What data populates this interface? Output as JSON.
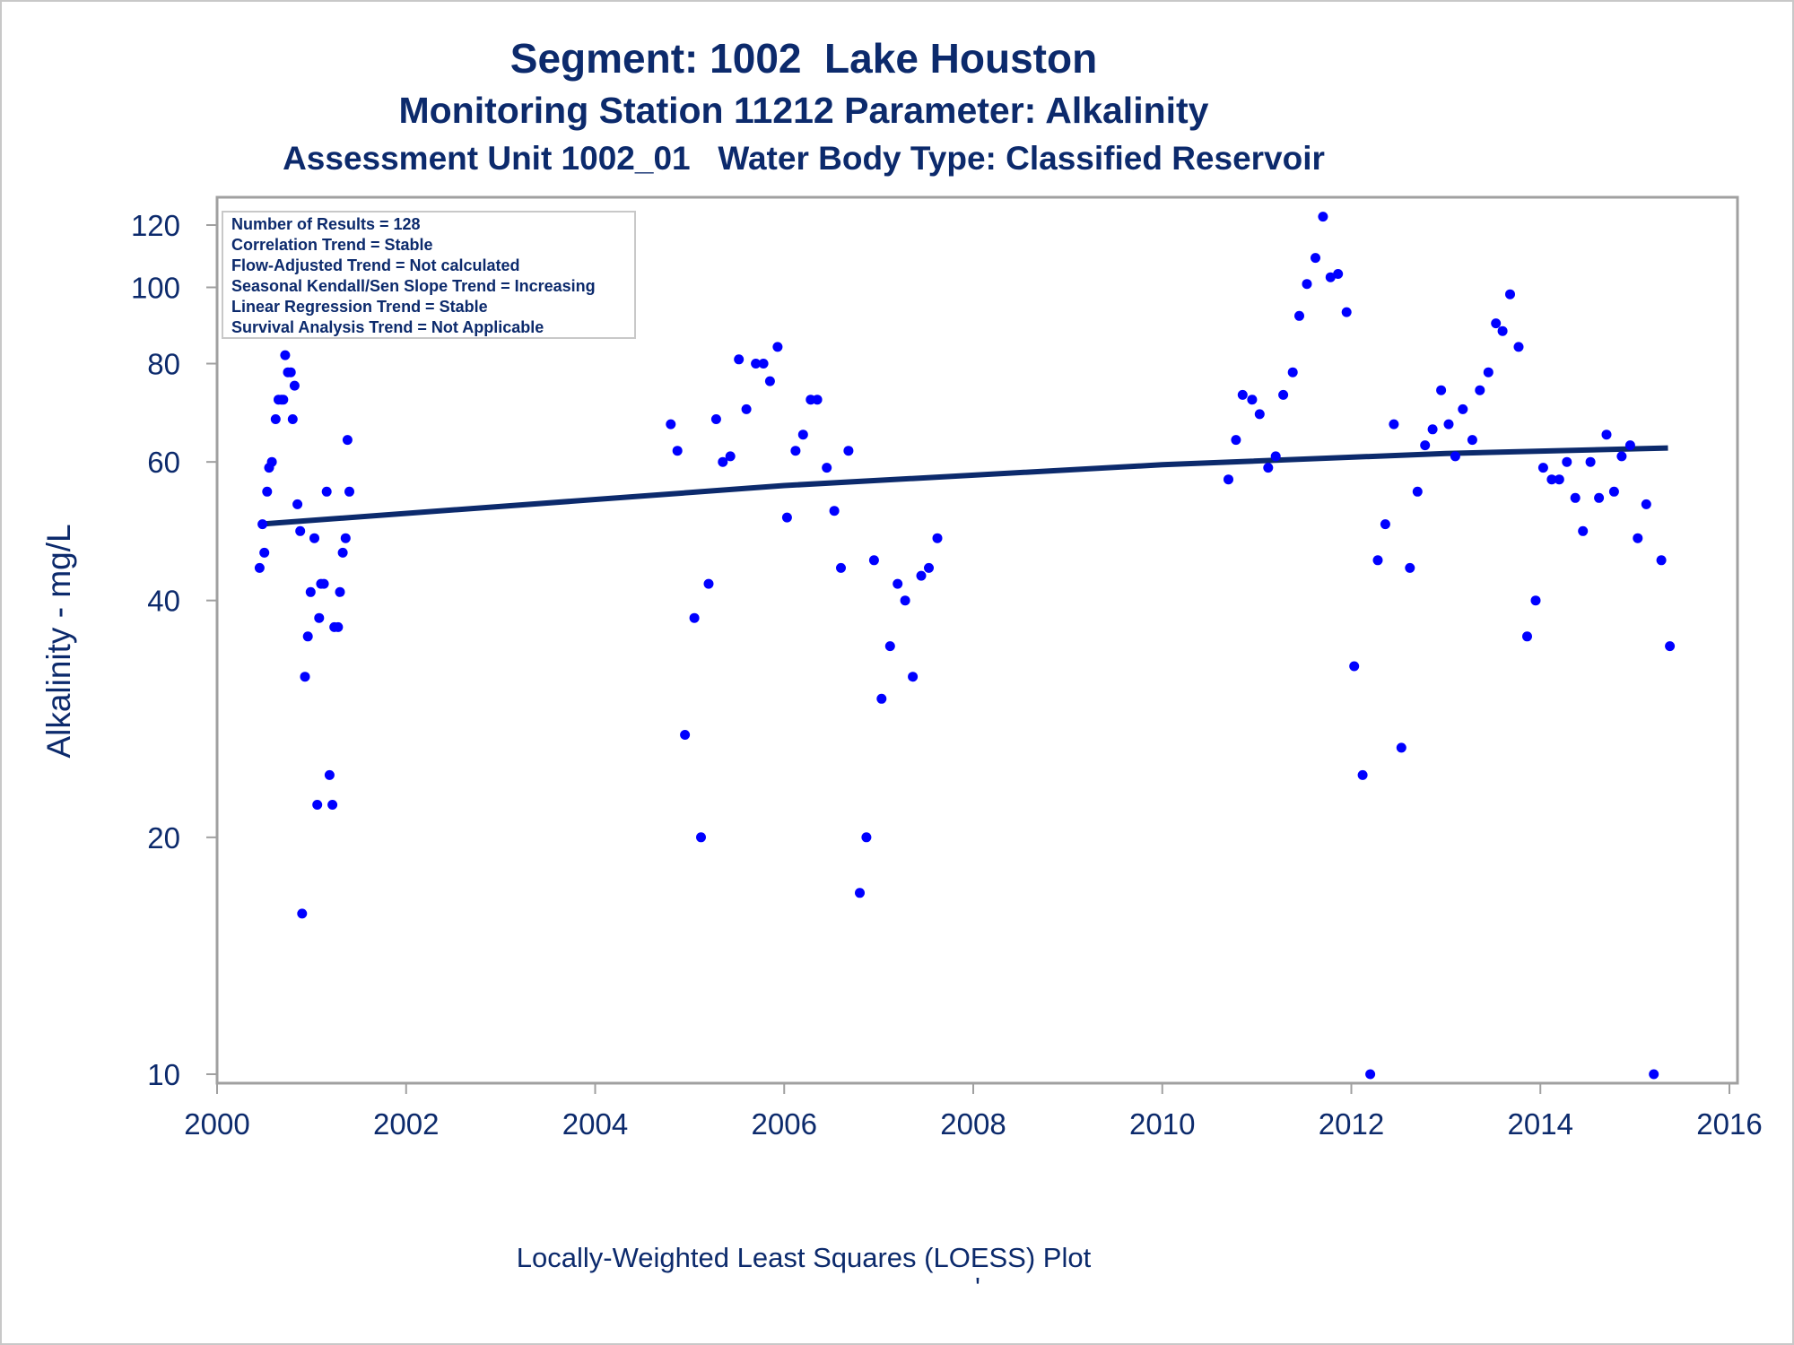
{
  "titles": {
    "line1": "Segment: 1002  Lake Houston",
    "line2": "Monitoring Station 11212 Parameter: Alkalinity",
    "line3": "Assessment Unit 1002_01   Water Body Type: Classified Reservoir"
  },
  "stats": [
    "Number of Results = 128",
    "Correlation Trend = Stable",
    "Flow-Adjusted Trend = Not calculated",
    "Seasonal Kendall/Sen Slope Trend = Increasing",
    "Linear Regression Trend = Stable",
    "Survival Analysis Trend = Not Applicable"
  ],
  "footer": "Locally-Weighted Least Squares (LOESS) Plot",
  "footer_mark": "'",
  "colors": {
    "points": "#0000ff",
    "trend_line": "#0c2a6c",
    "text": "#0c2a6c",
    "axis": "#a0a0a0"
  },
  "chart_data": {
    "type": "scatter",
    "xlabel": "",
    "ylabel": "Alkalinity - mg/L",
    "xlim": [
      2000,
      2016
    ],
    "ylim": [
      10,
      125
    ],
    "y_scale": "log",
    "x_ticks": [
      2000,
      2002,
      2004,
      2006,
      2008,
      2010,
      2012,
      2014,
      2016
    ],
    "y_ticks": [
      10,
      20,
      40,
      60,
      80,
      100,
      120
    ],
    "grid": false,
    "legend": "top-left",
    "trend_line": {
      "x": [
        2000.45,
        2006,
        2010,
        2013,
        2015.35
      ],
      "y": [
        50,
        56,
        59.5,
        61.5,
        62.5
      ]
    },
    "points": [
      [
        2000.45,
        44
      ],
      [
        2000.48,
        50
      ],
      [
        2000.5,
        46
      ],
      [
        2000.53,
        55
      ],
      [
        2000.55,
        59
      ],
      [
        2000.58,
        60
      ],
      [
        2000.62,
        68
      ],
      [
        2000.65,
        72
      ],
      [
        2000.68,
        72
      ],
      [
        2000.7,
        72
      ],
      [
        2000.72,
        82
      ],
      [
        2000.75,
        78
      ],
      [
        2000.78,
        78
      ],
      [
        2000.8,
        68
      ],
      [
        2000.82,
        75
      ],
      [
        2000.85,
        53
      ],
      [
        2000.88,
        49
      ],
      [
        2000.9,
        16
      ],
      [
        2000.93,
        32
      ],
      [
        2000.96,
        36
      ],
      [
        2000.99,
        41
      ],
      [
        2001.03,
        48
      ],
      [
        2001.06,
        22
      ],
      [
        2001.08,
        38
      ],
      [
        2001.1,
        42
      ],
      [
        2001.13,
        42
      ],
      [
        2001.16,
        55
      ],
      [
        2001.19,
        24
      ],
      [
        2001.22,
        22
      ],
      [
        2001.24,
        37
      ],
      [
        2001.28,
        37
      ],
      [
        2001.3,
        41
      ],
      [
        2001.33,
        46
      ],
      [
        2001.36,
        48
      ],
      [
        2001.38,
        64
      ],
      [
        2001.4,
        55
      ],
      [
        2004.8,
        67
      ],
      [
        2004.87,
        62
      ],
      [
        2004.95,
        27
      ],
      [
        2005.05,
        38
      ],
      [
        2005.12,
        20
      ],
      [
        2005.2,
        42
      ],
      [
        2005.28,
        68
      ],
      [
        2005.35,
        60
      ],
      [
        2005.43,
        61
      ],
      [
        2005.52,
        81
      ],
      [
        2005.6,
        70
      ],
      [
        2005.7,
        80
      ],
      [
        2005.78,
        80
      ],
      [
        2005.85,
        76
      ],
      [
        2005.93,
        84
      ],
      [
        2006.03,
        51
      ],
      [
        2006.12,
        62
      ],
      [
        2006.2,
        65
      ],
      [
        2006.28,
        72
      ],
      [
        2006.35,
        72
      ],
      [
        2006.45,
        59
      ],
      [
        2006.53,
        52
      ],
      [
        2006.6,
        44
      ],
      [
        2006.68,
        62
      ],
      [
        2006.8,
        17
      ],
      [
        2006.87,
        20
      ],
      [
        2006.95,
        45
      ],
      [
        2007.03,
        30
      ],
      [
        2007.12,
        35
      ],
      [
        2007.2,
        42
      ],
      [
        2007.28,
        40
      ],
      [
        2007.36,
        32
      ],
      [
        2007.45,
        43
      ],
      [
        2007.53,
        44
      ],
      [
        2007.62,
        48
      ],
      [
        2010.7,
        57
      ],
      [
        2010.78,
        64
      ],
      [
        2010.85,
        73
      ],
      [
        2010.95,
        72
      ],
      [
        2011.03,
        69
      ],
      [
        2011.12,
        59
      ],
      [
        2011.2,
        61
      ],
      [
        2011.28,
        73
      ],
      [
        2011.38,
        78
      ],
      [
        2011.45,
        92
      ],
      [
        2011.53,
        101
      ],
      [
        2011.62,
        109
      ],
      [
        2011.7,
        123
      ],
      [
        2011.78,
        103
      ],
      [
        2011.86,
        104
      ],
      [
        2011.95,
        93
      ],
      [
        2012.03,
        33
      ],
      [
        2012.12,
        24
      ],
      [
        2012.2,
        10
      ],
      [
        2012.28,
        45
      ],
      [
        2012.36,
        50
      ],
      [
        2012.45,
        67
      ],
      [
        2012.53,
        26
      ],
      [
        2012.62,
        44
      ],
      [
        2012.7,
        55
      ],
      [
        2012.78,
        63
      ],
      [
        2012.86,
        66
      ],
      [
        2012.95,
        74
      ],
      [
        2013.03,
        67
      ],
      [
        2013.1,
        61
      ],
      [
        2013.18,
        70
      ],
      [
        2013.28,
        64
      ],
      [
        2013.36,
        74
      ],
      [
        2013.45,
        78
      ],
      [
        2013.53,
        90
      ],
      [
        2013.6,
        88
      ],
      [
        2013.68,
        98
      ],
      [
        2013.77,
        84
      ],
      [
        2013.86,
        36
      ],
      [
        2013.95,
        40
      ],
      [
        2014.03,
        59
      ],
      [
        2014.12,
        57
      ],
      [
        2014.2,
        57
      ],
      [
        2014.28,
        60
      ],
      [
        2014.37,
        54
      ],
      [
        2014.45,
        49
      ],
      [
        2014.53,
        60
      ],
      [
        2014.62,
        54
      ],
      [
        2014.7,
        65
      ],
      [
        2014.78,
        55
      ],
      [
        2014.86,
        61
      ],
      [
        2014.95,
        63
      ],
      [
        2015.03,
        48
      ],
      [
        2015.12,
        53
      ],
      [
        2015.2,
        10
      ],
      [
        2015.28,
        45
      ],
      [
        2015.37,
        35
      ]
    ]
  }
}
